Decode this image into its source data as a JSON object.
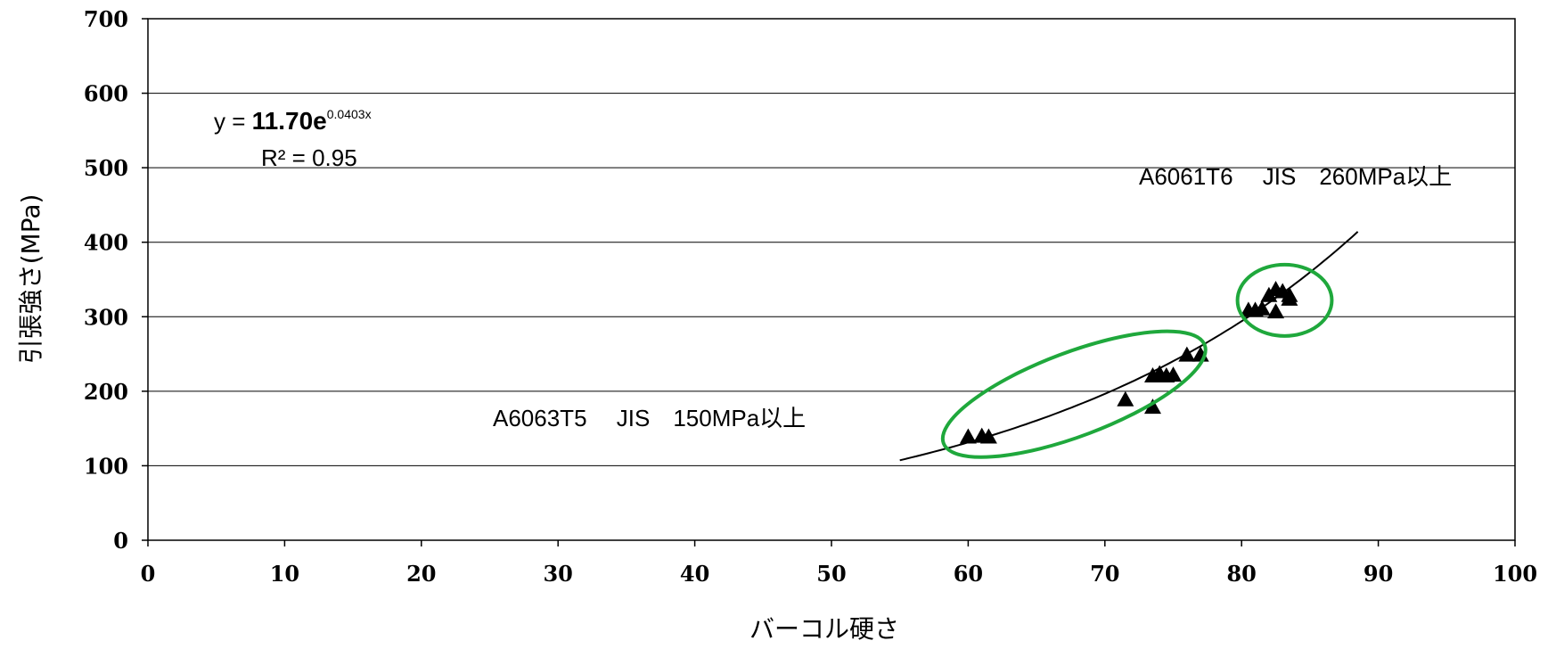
{
  "chart_data": {
    "type": "scatter",
    "xlabel": "バーコル硬さ",
    "ylabel": "引張強さ(MPa)",
    "xlim": [
      0,
      100
    ],
    "ylim": [
      0,
      700
    ],
    "x_ticks": [
      "0",
      "10",
      "20",
      "30",
      "40",
      "50",
      "60",
      "70",
      "80",
      "90",
      "100"
    ],
    "y_ticks": [
      "0",
      "100",
      "200",
      "300",
      "400",
      "500",
      "600",
      "700"
    ],
    "grid": "horizontal",
    "marker": "triangle",
    "series": [
      {
        "points": [
          [
            60,
            140
          ],
          [
            61,
            141
          ],
          [
            61.5,
            140
          ],
          [
            71.5,
            190
          ],
          [
            73.5,
            180
          ],
          [
            73.5,
            222
          ],
          [
            74,
            225
          ],
          [
            74.5,
            222
          ],
          [
            75,
            223
          ],
          [
            76,
            250
          ],
          [
            77,
            250
          ],
          [
            80.5,
            310
          ],
          [
            81,
            310
          ],
          [
            81.5,
            312
          ],
          [
            82,
            330
          ],
          [
            82.5,
            338
          ],
          [
            82.5,
            308
          ],
          [
            83,
            335
          ],
          [
            83.5,
            330
          ],
          [
            83.5,
            325
          ]
        ]
      }
    ],
    "trendline": {
      "equation_prefix": "y = ",
      "coefficient": "11.70e",
      "exponent": "0.0403x",
      "r2_label": "R² = 0.95",
      "a": 11.7,
      "b": 0.0403,
      "x_range": [
        55,
        88.5
      ]
    },
    "annotations": [
      {
        "text": "A6061T6　 JIS　260MPa以上"
      },
      {
        "text": "A6063T5　 JIS　150MPa以上"
      }
    ],
    "highlight_color": "#1fa83c"
  }
}
